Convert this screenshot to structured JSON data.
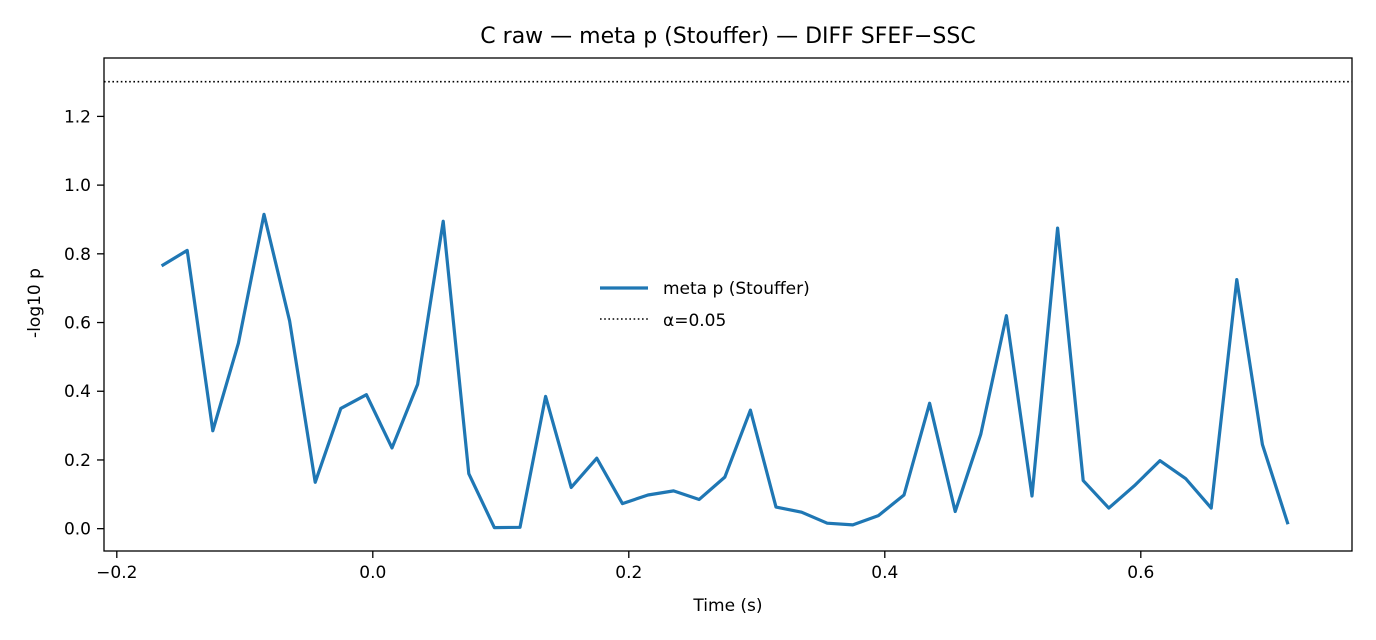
{
  "chart_data": {
    "type": "line",
    "title": "C raw — meta p (Stouffer) — DIFF SFEF−SSC",
    "xlabel": "Time (s)",
    "ylabel": "-log10 p",
    "xlim": [
      -0.21,
      0.765
    ],
    "ylim": [
      -0.065,
      1.37
    ],
    "xticks": [
      -0.2,
      0.0,
      0.2,
      0.4,
      0.6
    ],
    "xtick_labels": [
      "−0.2",
      "0.0",
      "0.2",
      "0.4",
      "0.6"
    ],
    "yticks": [
      0.0,
      0.2,
      0.4,
      0.6,
      0.8,
      1.0,
      1.2
    ],
    "ytick_labels": [
      "0.0",
      "0.2",
      "0.4",
      "0.6",
      "0.8",
      "1.0",
      "1.2"
    ],
    "grid": false,
    "legend_position": "center",
    "series": [
      {
        "name": "meta p (Stouffer)",
        "color": "#1f77b4",
        "style": "solid",
        "x": [
          -0.165,
          -0.145,
          -0.125,
          -0.105,
          -0.085,
          -0.065,
          -0.045,
          -0.025,
          -0.005,
          0.015,
          0.035,
          0.055,
          0.075,
          0.095,
          0.115,
          0.135,
          0.155,
          0.175,
          0.195,
          0.215,
          0.235,
          0.255,
          0.275,
          0.295,
          0.315,
          0.335,
          0.355,
          0.375,
          0.395,
          0.415,
          0.435,
          0.455,
          0.475,
          0.495,
          0.515,
          0.535,
          0.555,
          0.575,
          0.595,
          0.615,
          0.635,
          0.655,
          0.675,
          0.695,
          0.715
        ],
        "y": [
          0.765,
          0.81,
          0.285,
          0.54,
          0.915,
          0.605,
          0.135,
          0.35,
          0.39,
          0.235,
          0.42,
          0.895,
          0.16,
          0.003,
          0.004,
          0.385,
          0.12,
          0.205,
          0.073,
          0.098,
          0.11,
          0.085,
          0.15,
          0.345,
          0.063,
          0.048,
          0.016,
          0.011,
          0.038,
          0.098,
          0.365,
          0.05,
          0.275,
          0.62,
          0.095,
          0.875,
          0.14,
          0.06,
          0.125,
          0.198,
          0.146,
          0.06,
          0.725,
          0.245,
          0.013
        ]
      },
      {
        "name": "α=0.05",
        "color": "#000000",
        "style": "dotted",
        "hline": 1.30103
      }
    ]
  }
}
